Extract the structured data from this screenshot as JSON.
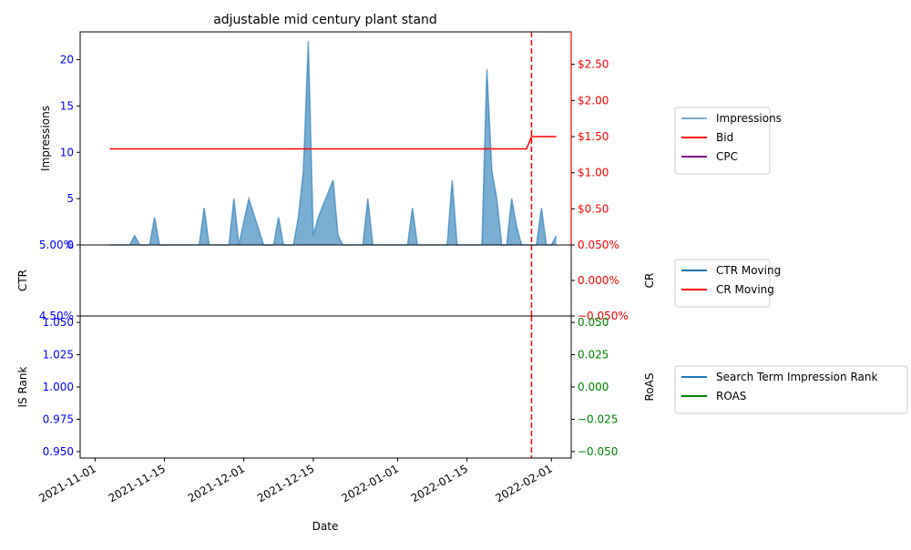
{
  "chart_data": {
    "type": "line",
    "title": "adjustable mid century plant stand",
    "xlabel": "Date",
    "x_range": [
      "2021-10-29",
      "2022-02-05"
    ],
    "x_ticks": [
      "2021-11-01",
      "2021-11-15",
      "2021-12-01",
      "2021-12-15",
      "2022-01-01",
      "2022-01-15",
      "2022-02-01"
    ],
    "vline_date": "2022-01-28",
    "colors": {
      "blue": "#1f77b4",
      "red": "#ff0000",
      "purple": "#800080",
      "green": "#008000",
      "tick_blue": "#0000ff"
    },
    "panels": [
      {
        "id": "top",
        "left_label": "Impressions",
        "left_ylim": [
          0,
          23
        ],
        "left_ticks": [
          0,
          5,
          10,
          15,
          20
        ],
        "left_tick_labels": [
          "0",
          "5",
          "10",
          "15",
          "20"
        ],
        "right_ylim": [
          0,
          2.95
        ],
        "right_ticks": [
          0.5,
          1.0,
          1.5,
          2.0,
          2.5
        ],
        "right_tick_labels": [
          "$0.50",
          "$1.00",
          "$1.50",
          "$2.00",
          "$2.50"
        ],
        "legend": [
          "Impressions",
          "Bid",
          "CPC"
        ],
        "series": [
          {
            "name": "Impressions",
            "type": "area",
            "axis": "left",
            "points": [
              [
                "2021-11-04",
                0
              ],
              [
                "2021-11-08",
                0
              ],
              [
                "2021-11-09",
                1
              ],
              [
                "2021-11-10",
                0
              ],
              [
                "2021-11-12",
                0
              ],
              [
                "2021-11-13",
                3
              ],
              [
                "2021-11-14",
                0
              ],
              [
                "2021-11-22",
                0
              ],
              [
                "2021-11-23",
                4
              ],
              [
                "2021-11-24",
                0
              ],
              [
                "2021-11-28",
                0
              ],
              [
                "2021-11-29",
                5
              ],
              [
                "2021-11-30",
                0
              ],
              [
                "2021-12-02",
                5
              ],
              [
                "2021-12-05",
                0
              ],
              [
                "2021-12-07",
                0
              ],
              [
                "2021-12-08",
                3
              ],
              [
                "2021-12-09",
                0
              ],
              [
                "2021-12-11",
                0
              ],
              [
                "2021-12-12",
                3
              ],
              [
                "2021-12-13",
                8
              ],
              [
                "2021-12-14",
                22
              ],
              [
                "2021-12-15",
                1
              ],
              [
                "2021-12-16",
                3
              ],
              [
                "2021-12-19",
                7
              ],
              [
                "2021-12-20",
                1
              ],
              [
                "2021-12-21",
                0
              ],
              [
                "2021-12-25",
                0
              ],
              [
                "2021-12-26",
                5
              ],
              [
                "2021-12-27",
                0
              ],
              [
                "2022-01-03",
                0
              ],
              [
                "2022-01-04",
                4
              ],
              [
                "2022-01-05",
                0
              ],
              [
                "2022-01-11",
                0
              ],
              [
                "2022-01-12",
                7
              ],
              [
                "2022-01-13",
                0
              ],
              [
                "2022-01-18",
                0
              ],
              [
                "2022-01-19",
                19
              ],
              [
                "2022-01-20",
                8
              ],
              [
                "2022-01-21",
                5
              ],
              [
                "2022-01-22",
                0
              ],
              [
                "2022-01-23",
                0
              ],
              [
                "2022-01-24",
                5
              ],
              [
                "2022-01-25",
                2
              ],
              [
                "2022-01-26",
                0
              ],
              [
                "2022-01-29",
                0
              ],
              [
                "2022-01-30",
                4
              ],
              [
                "2022-01-31",
                0
              ],
              [
                "2022-02-01",
                0
              ],
              [
                "2022-02-02",
                1
              ]
            ]
          },
          {
            "name": "Bid",
            "type": "line",
            "axis": "right",
            "points": [
              [
                "2021-11-04",
                1.33
              ],
              [
                "2022-01-27",
                1.33
              ],
              [
                "2022-01-28",
                1.5
              ],
              [
                "2022-02-02",
                1.5
              ]
            ]
          },
          {
            "name": "CPC",
            "type": "line",
            "axis": "right",
            "points": []
          }
        ]
      },
      {
        "id": "middle",
        "left_label": "CTR",
        "left_ylim": [
          0.045,
          0.05
        ],
        "left_ticks": [
          0.05,
          0.045
        ],
        "left_tick_labels": [
          "5.00%",
          "4.50%"
        ],
        "right_label": "CR",
        "right_ylim": [
          -0.0005,
          0.0005
        ],
        "right_ticks": [
          0.0005,
          0.0,
          -0.0005
        ],
        "right_tick_labels": [
          "0.050%",
          "0.000%",
          "−0.050%"
        ],
        "legend": [
          "CTR Moving",
          "CR Moving"
        ],
        "series": [
          {
            "name": "CTR Moving",
            "type": "line",
            "axis": "left",
            "points": []
          },
          {
            "name": "CR Moving",
            "type": "line",
            "axis": "right",
            "points": []
          }
        ]
      },
      {
        "id": "bottom",
        "left_label": "IS Rank",
        "left_ylim": [
          0.945,
          1.055
        ],
        "left_ticks": [
          1.05,
          1.025,
          1.0,
          0.975,
          0.95
        ],
        "left_tick_labels": [
          "1.050",
          "1.025",
          "1.000",
          "0.975",
          "0.950"
        ],
        "right_label": "RoAS",
        "right_ylim": [
          -0.055,
          0.055
        ],
        "right_ticks": [
          0.05,
          0.025,
          0.0,
          -0.025,
          -0.05
        ],
        "right_tick_labels": [
          "0.050",
          "0.025",
          "0.000",
          "−0.025",
          "−0.050"
        ],
        "legend": [
          "Search Term Impression Rank",
          "ROAS"
        ],
        "series": [
          {
            "name": "Search Term Impression Rank",
            "type": "line",
            "axis": "left",
            "points": []
          },
          {
            "name": "ROAS",
            "type": "line",
            "axis": "right",
            "points": []
          }
        ]
      }
    ]
  }
}
